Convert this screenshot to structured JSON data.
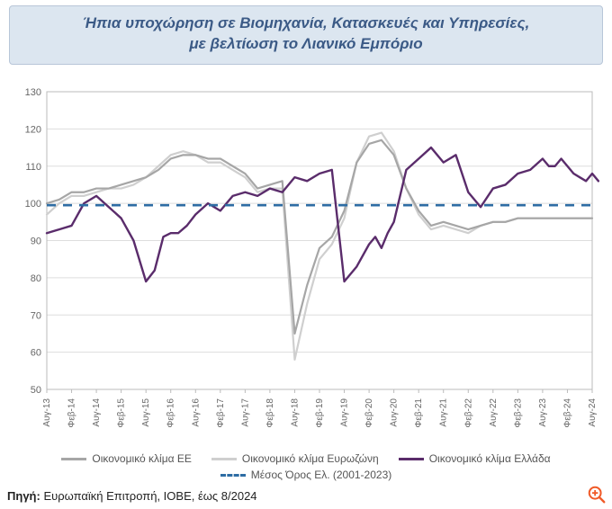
{
  "title_line1": "Ήπια υποχώρηση σε Βιομηχανία, Κατασκευές και Υπηρεσίες,",
  "title_line2": "με βελτίωση το Λιανικό Εμπόριο",
  "chart": {
    "type": "line",
    "ylim": [
      50,
      130
    ],
    "ytick_step": 10,
    "yticks": [
      50,
      60,
      70,
      80,
      90,
      100,
      110,
      120,
      130
    ],
    "x_count": 45,
    "x_major_labels": [
      "Αυγ-13",
      "Φεβ-14",
      "Αυγ-14",
      "Φεβ-15",
      "Αυγ-15",
      "Φεβ-16",
      "Αυγ-16",
      "Φεβ-17",
      "Αυγ-17",
      "Φεβ-18",
      "Αυγ-18",
      "Φεβ-19",
      "Αυγ-19",
      "Φεβ-20",
      "Αυγ-20",
      "Φεβ-21",
      "Αυγ-21",
      "Φεβ-22",
      "Αυγ-22",
      "Φεβ-23",
      "Αυγ-23",
      "Φεβ-24",
      "Αυγ-24"
    ],
    "x_major_every": 2,
    "xlabel_fontsize": 10,
    "ylabel_fontsize": 11,
    "background_color": "#ffffff",
    "grid_color": "#dddddd",
    "axis_color": "#bbbbbb",
    "border_color": "#a8b8cc",
    "series": {
      "eu": {
        "label": "Οικονομικό κλίμα ΕΕ",
        "color": "#a6a6a6",
        "width": 2.2,
        "style": "solid",
        "values": [
          100,
          101,
          103,
          103,
          104,
          104,
          105,
          106,
          107,
          109,
          112,
          113,
          113,
          112,
          112,
          110,
          108,
          104,
          105,
          106,
          65,
          78,
          88,
          91,
          98,
          111,
          116,
          117,
          113,
          104,
          98,
          94,
          95,
          94,
          93,
          94,
          95,
          95,
          96,
          96,
          96,
          96,
          96,
          96,
          96
        ]
      },
      "ez": {
        "label": "Οικονομικό κλίμα Ευρωζώνη",
        "color": "#cfcfcf",
        "width": 2.2,
        "style": "solid",
        "values": [
          97,
          100,
          102,
          102,
          103,
          104,
          104,
          105,
          107,
          110,
          113,
          114,
          113,
          111,
          111,
          109,
          107,
          103,
          104,
          104,
          58,
          73,
          85,
          89,
          96,
          111,
          118,
          119,
          114,
          104,
          97,
          93,
          94,
          93,
          92,
          94,
          95,
          95,
          96,
          96,
          96,
          96,
          96,
          96,
          96
        ]
      },
      "gr": {
        "label": "Οικονομικό κλίμα Ελλάδα",
        "color": "#5a2c6b",
        "width": 2.4,
        "style": "solid",
        "values": [
          92,
          93,
          94,
          100,
          102,
          99,
          96,
          90,
          79,
          82,
          91,
          92,
          92,
          94,
          97,
          100,
          98,
          102,
          103,
          102,
          104,
          103,
          107,
          106,
          108,
          109,
          79,
          83,
          89,
          91,
          88,
          92,
          95,
          109,
          112,
          115,
          111,
          113,
          103,
          99,
          104,
          105,
          108,
          109,
          112,
          110,
          110,
          112,
          110,
          108,
          107,
          106,
          108,
          106
        ]
      },
      "avg": {
        "label": "Μέσος Όρος Ελ. (2001-2023)",
        "color": "#2e6da4",
        "width": 2.6,
        "style": "dashed",
        "value": 99.5
      }
    },
    "series_gr_x": [
      0,
      1,
      2,
      3,
      4,
      5,
      6,
      7,
      8,
      8.7,
      9.4,
      10,
      10.6,
      11.3,
      12,
      13,
      14,
      15,
      16,
      17,
      18,
      19,
      20,
      21,
      22,
      23,
      24,
      25,
      26,
      26.5,
      27,
      27.5,
      28,
      29,
      30,
      31,
      32,
      33,
      34,
      35,
      36,
      37,
      38,
      39,
      40,
      40.5,
      41,
      41.5,
      42,
      42.5,
      43,
      43.5,
      44,
      44.5
    ]
  },
  "legend": [
    {
      "key": "eu",
      "kind": "line"
    },
    {
      "key": "ez",
      "kind": "line"
    },
    {
      "key": "gr",
      "kind": "line"
    },
    {
      "key": "avg",
      "kind": "dash"
    }
  ],
  "source_label": "Πηγή:",
  "source_text": "Ευρωπαϊκή Επιτροπή, ΙΟΒΕ, έως 8/2024",
  "colors": {
    "title_bg": "#dce6f0",
    "title_text": "#3b5a86",
    "zoom_icon": "#f05a28"
  }
}
